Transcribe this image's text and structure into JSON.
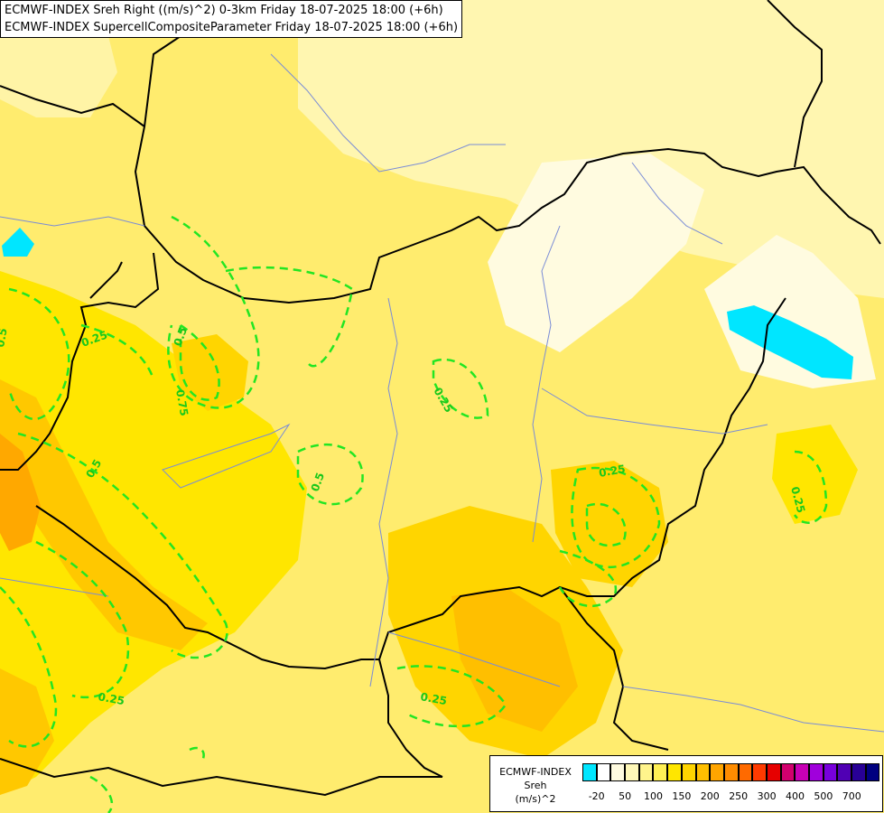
{
  "title": {
    "line1": "ECMWF-INDEX Sreh Right ((m/s)^2) 0-3km Friday 18-07-2025 18:00 (+6h)",
    "line2": "ECMWF-INDEX SupercellCompositeParameter Friday 18-07-2025 18:00 (+6h)"
  },
  "contour_labels": [
    "0.5",
    "0.25",
    "0.5",
    "0.75",
    "0.5",
    "0.5",
    "0.25",
    "0.25",
    "0.25",
    "0.25",
    "0.25"
  ],
  "legend": {
    "title_lines": [
      "ECMWF-INDEX",
      "Sreh",
      "(m/s)^2"
    ],
    "colors": [
      "#00e6ff",
      "#ffffff",
      "#fffbe0",
      "#fff8b8",
      "#fff48c",
      "#fff055",
      "#ffe600",
      "#ffd500",
      "#ffbf00",
      "#ffa500",
      "#ff8c00",
      "#ff6a00",
      "#ff3a00",
      "#e60000",
      "#d2006e",
      "#c800b4",
      "#a000dc",
      "#7800dc",
      "#5000b4",
      "#280096",
      "#000080"
    ],
    "ticks": [
      "-20",
      "50",
      "100",
      "150",
      "200",
      "250",
      "300",
      "400",
      "500",
      "700"
    ]
  }
}
